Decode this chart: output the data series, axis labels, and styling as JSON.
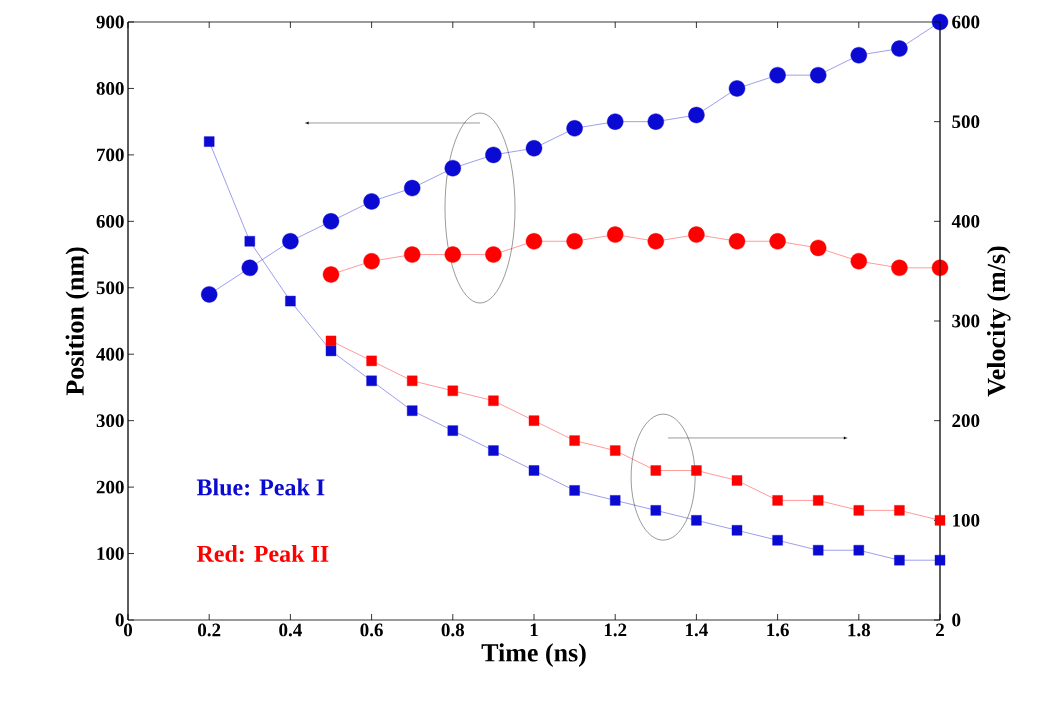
{
  "chart_data": {
    "type": "line",
    "xlabel": "Time (ns)",
    "ylabel": "Position (nm)",
    "y2label": "Velocity (m/s)",
    "xlim": [
      0,
      2
    ],
    "xticks": [
      0,
      0.2,
      0.4,
      0.6,
      0.8,
      1,
      1.2,
      1.4,
      1.6,
      1.8,
      2
    ],
    "ylim": [
      0,
      900
    ],
    "yticks": [
      0,
      100,
      200,
      300,
      400,
      500,
      600,
      700,
      800,
      900
    ],
    "y2lim": [
      0,
      600
    ],
    "y2ticks": [
      0,
      100,
      200,
      300,
      400,
      500,
      600
    ],
    "series": [
      {
        "color": "#0a0ad2",
        "marker": "circle",
        "x": [
          0.2,
          0.3,
          0.4,
          0.5,
          0.6,
          0.7,
          0.8,
          0.9,
          1.0,
          1.1,
          1.2,
          1.3,
          1.4,
          1.5,
          1.6,
          1.7,
          1.8,
          1.9,
          2.0
        ],
        "values": [
          490,
          530,
          570,
          600,
          630,
          650,
          680,
          700,
          710,
          740,
          750,
          750,
          760,
          800,
          820,
          820,
          850,
          860,
          900
        ]
      },
      {
        "color": "#ff0000",
        "marker": "circle",
        "x": [
          0.5,
          0.6,
          0.7,
          0.8,
          0.9,
          1.0,
          1.1,
          1.2,
          1.3,
          1.4,
          1.5,
          1.6,
          1.7,
          1.8,
          1.9,
          2.0
        ],
        "values": [
          520,
          540,
          550,
          550,
          550,
          570,
          570,
          580,
          570,
          580,
          570,
          570,
          560,
          540,
          530,
          530
        ]
      },
      {
        "color": "#0a0ad2",
        "marker": "square",
        "axis": "y2",
        "x": [
          0.2,
          0.3,
          0.4,
          0.5,
          0.6,
          0.7,
          0.8,
          0.9,
          1.0,
          1.1,
          1.2,
          1.3,
          1.4,
          1.5,
          1.6,
          1.7,
          1.8,
          1.9,
          2.0
        ],
        "values": [
          480,
          380,
          320,
          270,
          240,
          210,
          190,
          170,
          150,
          130,
          120,
          110,
          100,
          90,
          80,
          70,
          70,
          60,
          60
        ]
      },
      {
        "color": "#ff0000",
        "marker": "square",
        "axis": "y2",
        "x": [
          0.5,
          0.6,
          0.7,
          0.8,
          0.9,
          1.0,
          1.1,
          1.2,
          1.3,
          1.4,
          1.5,
          1.6,
          1.7,
          1.8,
          1.9,
          2.0
        ],
        "values": [
          280,
          260,
          240,
          230,
          220,
          200,
          180,
          170,
          150,
          150,
          140,
          120,
          120,
          110,
          110,
          100
        ]
      }
    ],
    "annotations": [
      "Blue: Peak I",
      "Red: Peak II"
    ]
  }
}
